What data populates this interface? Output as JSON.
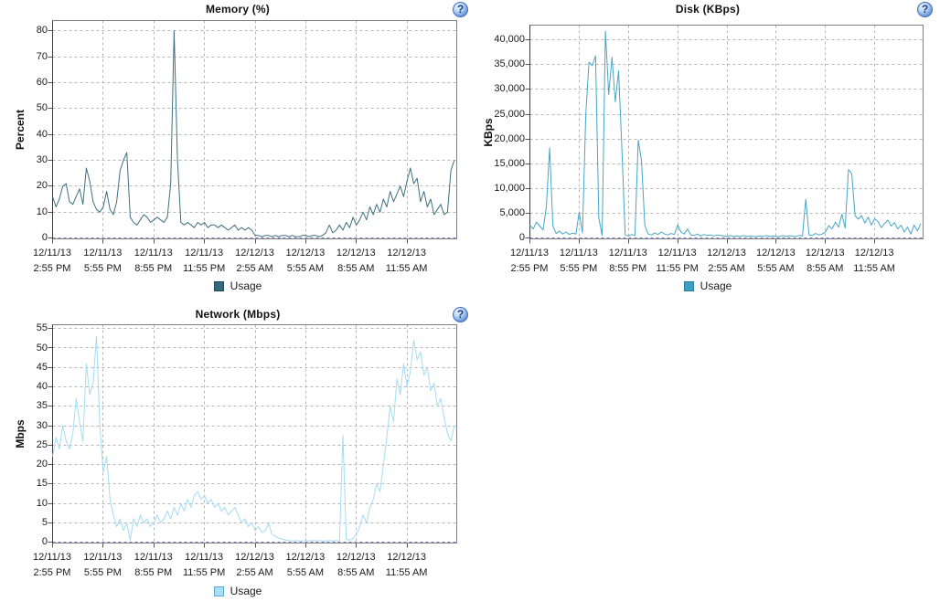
{
  "page": {
    "background": "#ffffff"
  },
  "chart_data": [
    {
      "type": "line",
      "title": "Memory (%)",
      "ylabel": "Percent",
      "help_icon": "?",
      "grid": true,
      "legend_position": "bottom",
      "ylim": [
        0,
        84
      ],
      "yticks": [
        0,
        10,
        20,
        30,
        40,
        50,
        60,
        70,
        80
      ],
      "ytick_labels": [
        "0",
        "10",
        "20",
        "30",
        "40",
        "50",
        "60",
        "70",
        "80"
      ],
      "xtick_labels": [
        [
          "12/11/13",
          "2:55 PM"
        ],
        [
          "12/11/13",
          "5:55 PM"
        ],
        [
          "12/11/13",
          "8:55 PM"
        ],
        [
          "12/11/13",
          "11:55 PM"
        ],
        [
          "12/12/13",
          "2:55 AM"
        ],
        [
          "12/12/13",
          "5:55 AM"
        ],
        [
          "12/12/13",
          "8:55 AM"
        ],
        [
          "12/12/13",
          "11:55 AM"
        ]
      ],
      "x_hours_per_tick": 3,
      "colors": {
        "line": "#3f7080",
        "legend_fill": "#33697c",
        "legend_border": "#1f4653",
        "grid": "#b5b5b5",
        "zero_line": "#7b7bd0"
      },
      "series": [
        {
          "name": "Usage",
          "values": [
            16,
            12,
            15,
            20,
            21,
            14,
            13,
            16,
            19,
            13,
            27,
            22,
            14,
            11,
            10,
            12,
            18,
            11,
            9,
            14,
            26,
            30,
            33,
            8,
            6,
            5,
            7,
            9,
            8,
            6,
            7,
            8,
            7,
            6,
            8,
            21,
            80,
            30,
            6,
            5,
            6,
            5,
            4,
            6,
            5,
            6,
            4,
            5,
            5,
            4,
            5,
            4,
            3,
            4,
            5,
            3,
            4,
            3,
            4,
            3,
            1,
            1,
            0.5,
            1,
            1,
            0.5,
            1,
            0.5,
            1,
            1,
            0.5,
            1,
            0.5,
            0.5,
            1,
            1,
            0.5,
            1,
            1,
            0.5,
            1,
            2,
            5,
            2,
            3,
            5,
            3,
            6,
            4,
            8,
            5,
            7,
            10,
            7,
            12,
            9,
            13,
            10,
            15,
            12,
            18,
            14,
            17,
            20,
            16,
            22,
            27,
            21,
            23,
            14,
            18,
            12,
            15,
            9,
            11,
            13,
            9,
            10,
            26,
            30
          ]
        }
      ]
    },
    {
      "type": "line",
      "title": "Disk (KBps)",
      "ylabel": "KBps",
      "help_icon": "?",
      "grid": true,
      "legend_position": "bottom",
      "ylim": [
        0,
        43000
      ],
      "yticks": [
        0,
        5000,
        10000,
        15000,
        20000,
        25000,
        30000,
        35000,
        40000
      ],
      "ytick_labels": [
        "0",
        "5,000",
        "10,000",
        "15,000",
        "20,000",
        "25,000",
        "30,000",
        "35,000",
        "40,000"
      ],
      "xtick_labels": [
        [
          "12/11/13",
          "2:55 PM"
        ],
        [
          "12/11/13",
          "5:55 PM"
        ],
        [
          "12/11/13",
          "8:55 PM"
        ],
        [
          "12/11/13",
          "11:55 PM"
        ],
        [
          "12/12/13",
          "2:55 AM"
        ],
        [
          "12/12/13",
          "5:55 AM"
        ],
        [
          "12/12/13",
          "8:55 AM"
        ],
        [
          "12/12/13",
          "11:55 AM"
        ]
      ],
      "x_hours_per_tick": 3,
      "colors": {
        "line": "#46a6c6",
        "legend_fill": "#3ba0c2",
        "legend_border": "#2c7d9b",
        "grid": "#b5b5b5",
        "zero_line": "#7b7bd0"
      },
      "series": [
        {
          "name": "Usage",
          "values": [
            2600,
            1800,
            3200,
            2400,
            1600,
            6300,
            18200,
            2500,
            900,
            1400,
            800,
            1200,
            700,
            1000,
            800,
            5200,
            1000,
            24800,
            35500,
            34800,
            36800,
            4000,
            500,
            41800,
            29000,
            36500,
            27500,
            33800,
            18000,
            600,
            400,
            700,
            500,
            19800,
            15500,
            2500,
            800,
            600,
            1000,
            700,
            1200,
            800,
            600,
            900,
            700,
            2600,
            1200,
            800,
            1800,
            600,
            500,
            800,
            400,
            700,
            500,
            600,
            400,
            600,
            500,
            400,
            300,
            500,
            300,
            400,
            300,
            500,
            300,
            400,
            300,
            300,
            400,
            300,
            500,
            300,
            400,
            300,
            300,
            500,
            300,
            400,
            400,
            300,
            500,
            400,
            7800,
            600,
            500,
            900,
            600,
            800,
            1200,
            2500,
            1800,
            3200,
            2200,
            4800,
            2000,
            13800,
            13000,
            4500,
            3800,
            4500,
            3000,
            4200,
            2600,
            3900,
            3300,
            2100,
            2900,
            3600,
            2400,
            3100,
            1800,
            2600,
            1200,
            2200,
            800,
            2600,
            1400,
            2900
          ]
        }
      ]
    },
    {
      "type": "line",
      "title": "Network (Mbps)",
      "ylabel": "Mbps",
      "help_icon": "?",
      "grid": true,
      "legend_position": "bottom",
      "ylim": [
        0,
        56
      ],
      "yticks": [
        0,
        5,
        10,
        15,
        20,
        25,
        30,
        35,
        40,
        45,
        50,
        55
      ],
      "ytick_labels": [
        "0",
        "5",
        "10",
        "15",
        "20",
        "25",
        "30",
        "35",
        "40",
        "45",
        "50",
        "55"
      ],
      "xtick_labels": [
        [
          "12/11/13",
          "2:55 PM"
        ],
        [
          "12/11/13",
          "5:55 PM"
        ],
        [
          "12/11/13",
          "8:55 PM"
        ],
        [
          "12/11/13",
          "11:55 PM"
        ],
        [
          "12/12/13",
          "2:55 AM"
        ],
        [
          "12/12/13",
          "5:55 AM"
        ],
        [
          "12/12/13",
          "8:55 AM"
        ],
        [
          "12/12/13",
          "11:55 AM"
        ]
      ],
      "x_hours_per_tick": 3,
      "colors": {
        "line": "#a5dcf2",
        "legend_fill": "#aadef2",
        "legend_border": "#5ea9cc",
        "grid": "#b5b5b5",
        "zero_line": "#7b7bd0"
      },
      "series": [
        {
          "name": "Usage",
          "values": [
            22,
            27,
            24,
            30,
            26,
            24,
            28,
            37,
            31,
            26,
            46,
            38,
            41,
            53,
            30,
            18,
            22,
            11,
            7,
            4,
            6,
            3,
            5,
            0.5,
            6,
            4,
            7,
            5,
            6,
            4,
            5,
            7,
            5,
            6,
            8,
            6,
            9,
            7,
            10,
            8,
            11,
            9,
            12,
            13,
            11,
            12,
            10,
            11,
            9,
            10,
            8,
            9,
            7,
            8,
            9,
            7,
            5,
            6,
            4,
            5,
            3,
            4,
            2.5,
            3,
            4.8,
            2,
            1.5,
            1,
            0.8,
            0.5,
            0.4,
            0.3,
            0.4,
            0.3,
            0.3,
            0.4,
            0.3,
            0.4,
            0.3,
            0.4,
            0.3,
            0.3,
            0.4,
            0.3,
            0.4,
            0.3,
            27.5,
            0.8,
            0.5,
            1,
            2,
            4,
            7,
            5,
            9,
            11,
            15,
            13,
            20,
            27,
            35,
            31,
            42,
            38,
            46,
            40,
            44,
            52,
            47,
            49,
            43,
            45,
            39,
            41,
            35,
            37,
            32,
            28,
            26,
            30
          ]
        }
      ]
    }
  ]
}
